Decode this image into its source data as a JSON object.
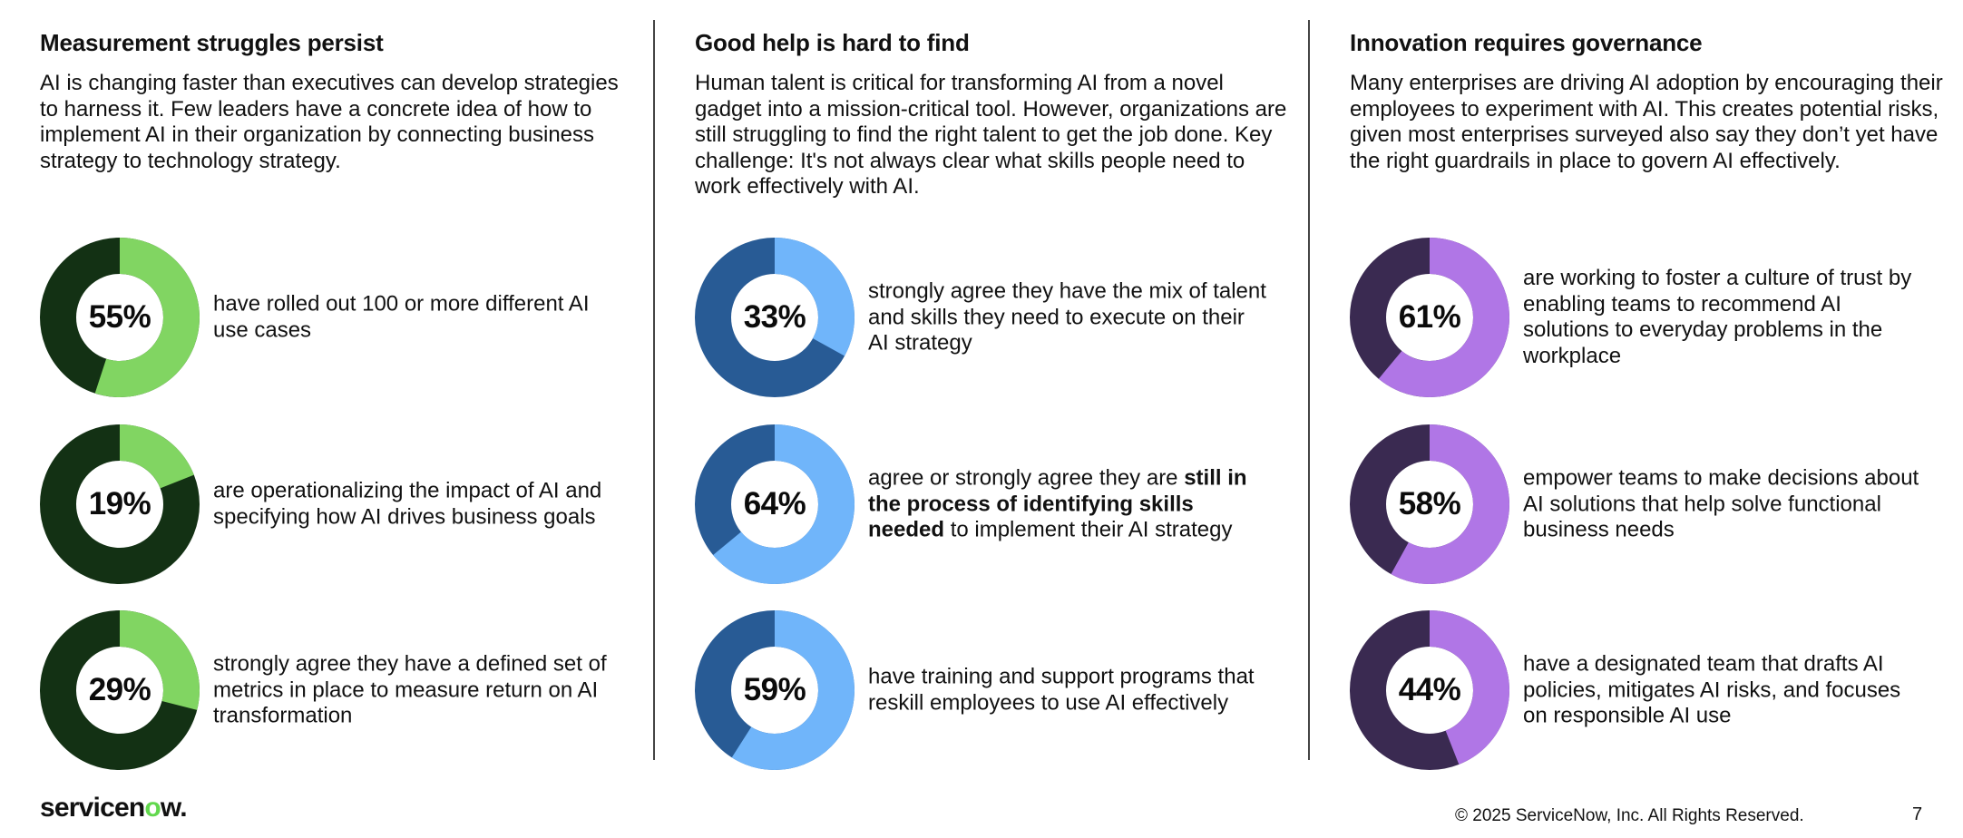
{
  "colors": {
    "green_dark": "#133114",
    "green_light": "#81d562",
    "blue_dark": "#285b95",
    "blue_light": "#70b5fa",
    "purple_dark": "#3a2a51",
    "purple_light": "#b076e6"
  },
  "columns": [
    {
      "title": "Measurement struggles persist",
      "intro": "AI is changing faster than executives can develop strategies to harness it. Few leaders have a concrete idea of how to implement AI in their organization by connecting business strategy to technology strategy.",
      "dark_color": "#133114",
      "light_color": "#81d562",
      "stats": [
        {
          "value": "55%",
          "fraction": 0.55,
          "text_parts": [
            {
              "text": "have rolled out 100 or more different AI use cases",
              "bold": false
            }
          ]
        },
        {
          "value": "19%",
          "fraction": 0.19,
          "text_parts": [
            {
              "text": "are operationalizing the impact of AI and specifying how AI drives business goals",
              "bold": false
            }
          ]
        },
        {
          "value": "29%",
          "fraction": 0.29,
          "text_parts": [
            {
              "text": "strongly agree they have a defined set of metrics in place to measure return on AI transformation",
              "bold": false
            }
          ]
        }
      ]
    },
    {
      "title": "Good help is hard to find",
      "intro": "Human talent is critical for transforming AI from a novel gadget into a mission-critical tool. However, organizations are still struggling to find the right talent to get the job done. Key challenge: It's not always clear what skills people need to work effectively with AI.",
      "dark_color": "#285b95",
      "light_color": "#70b5fa",
      "stats": [
        {
          "value": "33%",
          "fraction": 0.33,
          "text_parts": [
            {
              "text": "strongly agree they have the mix of talent and skills they need to execute on their AI strategy",
              "bold": false
            }
          ]
        },
        {
          "value": "64%",
          "fraction": 0.64,
          "text_parts": [
            {
              "text": "agree or strongly agree they are ",
              "bold": false
            },
            {
              "text": "still in the process of identifying skills needed",
              "bold": true
            },
            {
              "text": " to implement their AI strategy",
              "bold": false
            }
          ]
        },
        {
          "value": "59%",
          "fraction": 0.59,
          "text_parts": [
            {
              "text": "have training and support programs that reskill employees to use AI effectively",
              "bold": false
            }
          ]
        }
      ]
    },
    {
      "title": "Innovation requires governance",
      "intro": "Many enterprises are driving AI adoption by encouraging their employees to experiment with AI. This creates potential risks, given most enterprises surveyed also say they don’t yet have the right guardrails in place to govern AI effectively.",
      "dark_color": "#3a2a51",
      "light_color": "#b076e6",
      "stats": [
        {
          "value": "61%",
          "fraction": 0.61,
          "text_parts": [
            {
              "text": "are working to foster a culture of trust by enabling teams to recommend AI solutions to everyday problems in the workplace",
              "bold": false
            }
          ]
        },
        {
          "value": "58%",
          "fraction": 0.58,
          "text_parts": [
            {
              "text": "empower teams to make decisions about AI solutions that help solve functional business needs",
              "bold": false
            }
          ]
        },
        {
          "value": "44%",
          "fraction": 0.44,
          "text_parts": [
            {
              "text": "have a designated team that drafts AI policies, mitigates AI risks, and focuses on responsible AI use",
              "bold": false
            }
          ]
        }
      ]
    }
  ],
  "footer": {
    "logo_text": "servicenow.",
    "copyright": "© 2025 ServiceNow, Inc. All Rights Reserved.",
    "page_number": "7"
  }
}
